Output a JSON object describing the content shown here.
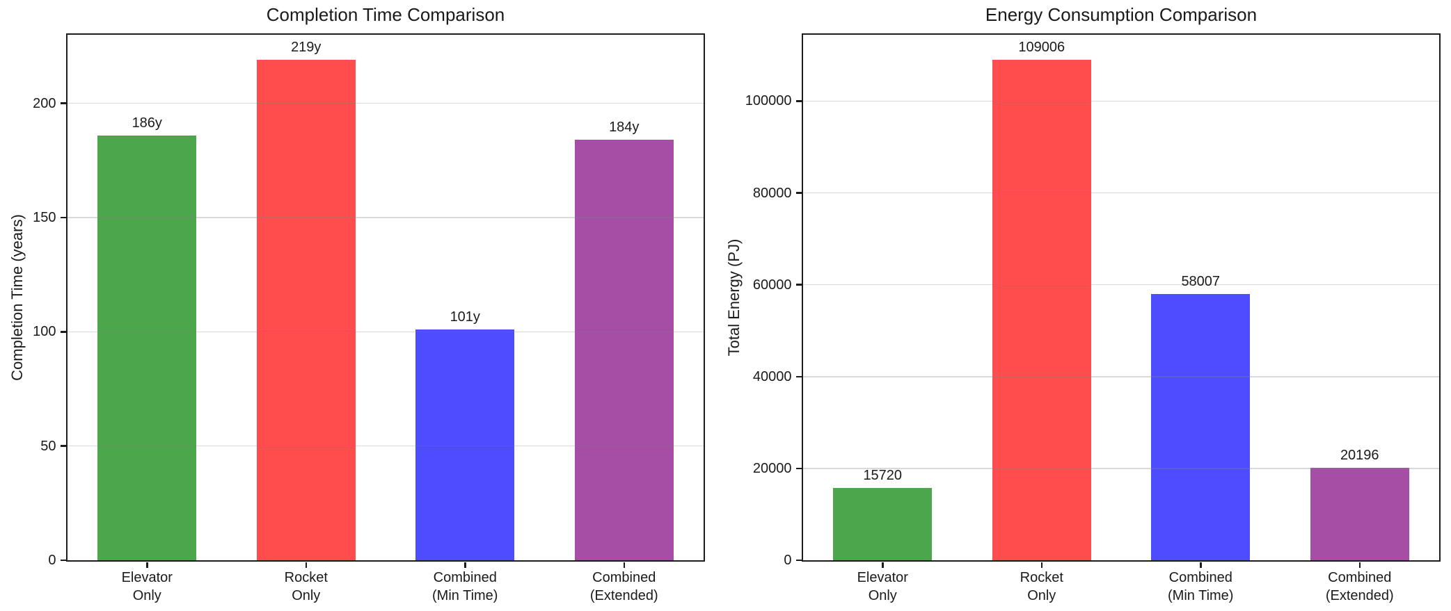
{
  "figure": {
    "background": "#ffffff",
    "text_color": "#1a1a1a",
    "spine_color": "#1c1c1c"
  },
  "chart_data": [
    {
      "type": "bar",
      "title": "Completion Time Comparison",
      "ylabel": "Completion Time (years)",
      "categories": [
        "Elevator\nOnly",
        "Rocket\nOnly",
        "Combined\n(Min Time)",
        "Combined\n(Extended)"
      ],
      "values": [
        186,
        219,
        101,
        184
      ],
      "bar_labels": [
        "186y",
        "219y",
        "101y",
        "184y"
      ],
      "bar_colors": [
        "#4CA64C",
        "#FF4D4D",
        "#4D4DFF",
        "#A64DA6"
      ],
      "yticks": [
        0,
        50,
        100,
        150,
        200
      ],
      "ytick_labels": [
        "0",
        "50",
        "100",
        "150",
        "200"
      ],
      "ylim": [
        0,
        230
      ],
      "grid": "horizontal",
      "grid_color": "rgba(128,128,128,0.3)",
      "legend": "none"
    },
    {
      "type": "bar",
      "title": "Energy Consumption Comparison",
      "ylabel": "Total Energy (PJ)",
      "categories": [
        "Elevator\nOnly",
        "Rocket\nOnly",
        "Combined\n(Min Time)",
        "Combined\n(Extended)"
      ],
      "values": [
        15720,
        109006,
        58007,
        20196
      ],
      "bar_labels": [
        "15720",
        "109006",
        "58007",
        "20196"
      ],
      "bar_colors": [
        "#4CA64C",
        "#FF4D4D",
        "#4D4DFF",
        "#A64DA6"
      ],
      "yticks": [
        0,
        20000,
        40000,
        60000,
        80000,
        100000
      ],
      "ytick_labels": [
        "0",
        "20000",
        "40000",
        "60000",
        "80000",
        "100000"
      ],
      "ylim": [
        0,
        114456
      ],
      "grid": "horizontal",
      "grid_color": "rgba(128,128,128,0.3)",
      "legend": "none"
    }
  ]
}
